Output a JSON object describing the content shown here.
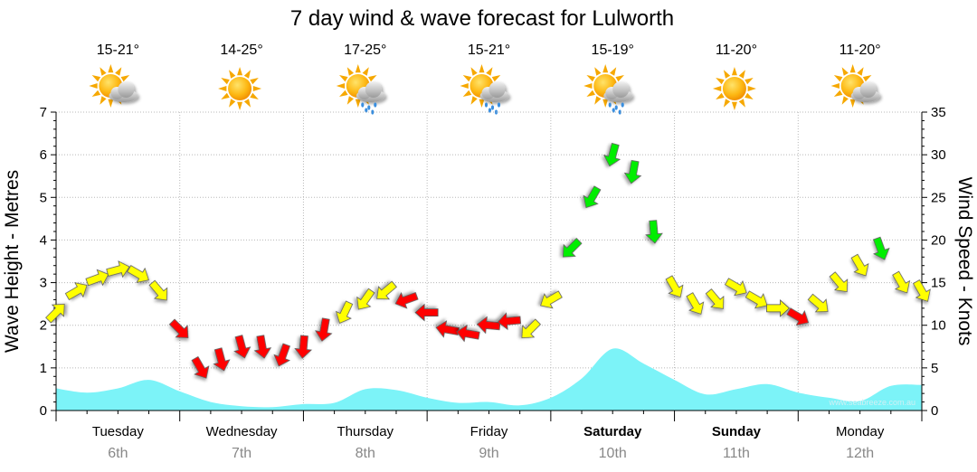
{
  "title": "7 day wind & wave forecast for Lulworth",
  "credit": "www.seabreeze.com.au",
  "days": [
    {
      "day": "Tuesday",
      "date": "6th",
      "temp": "15-21°",
      "icon": "partly-cloudy-icon",
      "bold": false
    },
    {
      "day": "Wednesday",
      "date": "7th",
      "temp": "14-25°",
      "icon": "sunny-icon",
      "bold": false
    },
    {
      "day": "Thursday",
      "date": "8th",
      "temp": "17-25°",
      "icon": "sun-cloud-rain-icon",
      "bold": false
    },
    {
      "day": "Friday",
      "date": "9th",
      "temp": "15-21°",
      "icon": "sun-cloud-rain-icon",
      "bold": false
    },
    {
      "day": "Saturday",
      "date": "10th",
      "temp": "15-19°",
      "icon": "sun-cloud-rain-icon",
      "bold": true
    },
    {
      "day": "Sunday",
      "date": "11th",
      "temp": "11-20°",
      "icon": "sunny-icon",
      "bold": true
    },
    {
      "day": "Monday",
      "date": "12th",
      "temp": "11-20°",
      "icon": "partly-cloudy-icon",
      "bold": false
    }
  ],
  "chart_data": {
    "type": "area",
    "ylabel_left": "Wave Height - Metres",
    "ylabel_right": "Wind Speed - Knots",
    "ylim_left": [
      0,
      7
    ],
    "ylim_right": [
      0,
      35
    ],
    "yticks_left": [
      "0",
      "1",
      "2",
      "3",
      "4",
      "5",
      "6",
      "7"
    ],
    "yticks_right": [
      "0",
      "5",
      "10",
      "15",
      "20",
      "25",
      "30",
      "35"
    ],
    "grid": true,
    "colors": {
      "wave_fill": "#7cf3f8",
      "wave_line": "#5ce8f0",
      "wind_light": "#ffff00",
      "wind_moderate": "#00ee00",
      "wind_strong": "#ff0000",
      "arrow_outline": "#555555"
    },
    "series": [
      {
        "name": "Wave Height",
        "unit": "m",
        "x": [
          0,
          0.25,
          0.5,
          0.75,
          1,
          1.25,
          1.5,
          1.75,
          2,
          2.25,
          2.5,
          2.75,
          3,
          3.25,
          3.5,
          3.75,
          4,
          4.25,
          4.5,
          4.75,
          5,
          5.25,
          5.5,
          5.75,
          6,
          6.25,
          6.5,
          6.75,
          7
        ],
        "values": [
          0.52,
          0.42,
          0.52,
          0.72,
          0.45,
          0.2,
          0.1,
          0.08,
          0.15,
          0.18,
          0.5,
          0.48,
          0.3,
          0.18,
          0.2,
          0.12,
          0.3,
          0.75,
          1.45,
          1.1,
          0.72,
          0.38,
          0.5,
          0.62,
          0.42,
          0.3,
          0.22,
          0.58,
          0.6
        ]
      },
      {
        "name": "Wind Speed",
        "unit": "knots",
        "x": [
          0,
          0.1667,
          0.3333,
          0.5,
          0.6667,
          0.8333,
          1,
          1.1667,
          1.3333,
          1.5,
          1.6667,
          1.8333,
          2,
          2.1667,
          2.3333,
          2.5,
          2.6667,
          2.8333,
          3,
          3.1667,
          3.3333,
          3.5,
          3.6667,
          3.8333,
          4,
          4.1667,
          4.3333,
          4.5,
          4.6667,
          4.8333,
          5,
          5.1667,
          5.3333,
          5.5,
          5.6667,
          5.8333,
          6,
          6.1667,
          6.3333,
          6.5,
          6.6667,
          6.8333,
          7
        ],
        "values": [
          11.5,
          14,
          15.5,
          16.5,
          16,
          14,
          9.5,
          5,
          6,
          7.5,
          7.5,
          6.5,
          7.5,
          9.5,
          11.5,
          13,
          14,
          13,
          11.5,
          9.5,
          9,
          10,
          10.5,
          9.5,
          13,
          19,
          25,
          30,
          28,
          21,
          14.5,
          12.5,
          13,
          14.5,
          13,
          12,
          11,
          12.5,
          15,
          17,
          19,
          15,
          14
        ],
        "category": [
          "light",
          "light",
          "light",
          "light",
          "light",
          "light",
          "strong",
          "strong",
          "strong",
          "strong",
          "strong",
          "strong",
          "strong",
          "strong",
          "light",
          "light",
          "light",
          "strong",
          "strong",
          "strong",
          "strong",
          "strong",
          "strong",
          "light",
          "light",
          "moderate",
          "moderate",
          "moderate",
          "moderate",
          "moderate",
          "light",
          "light",
          "light",
          "light",
          "light",
          "light",
          "strong",
          "light",
          "light",
          "light",
          "moderate",
          "light",
          "light"
        ],
        "direction_deg": [
          225,
          240,
          250,
          255,
          300,
          320,
          315,
          330,
          345,
          345,
          350,
          20,
          5,
          10,
          25,
          35,
          50,
          70,
          90,
          100,
          100,
          95,
          85,
          45,
          60,
          45,
          30,
          15,
          10,
          355,
          330,
          330,
          320,
          300,
          300,
          270,
          300,
          310,
          320,
          330,
          340,
          330,
          330
        ]
      }
    ]
  }
}
